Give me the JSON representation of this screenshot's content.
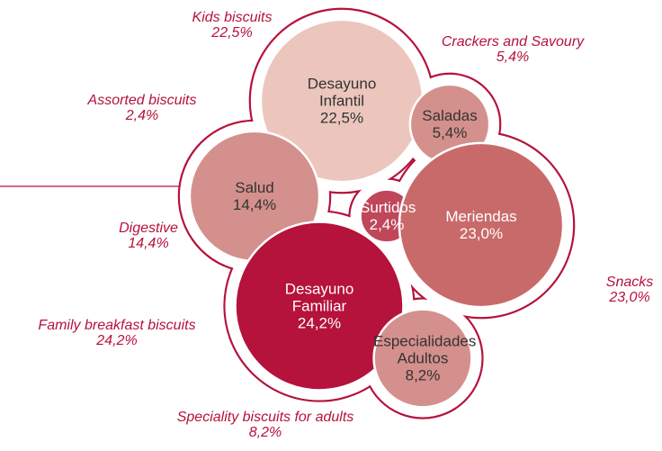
{
  "chart_data": {
    "type": "bubble",
    "categories": [
      "Desayuno Infantil",
      "Saladas",
      "Salud",
      "Surtidos",
      "Meriendas",
      "Desayuno Familiar",
      "Especialidades Adultos"
    ],
    "outer_labels": [
      "Kids biscuits",
      "Crackers and Savoury",
      "Digestive",
      "Assorted biscuits",
      "Snacks",
      "Family breakfast biscuits",
      "Speciality biscuits for adults"
    ],
    "values": [
      22.5,
      5.4,
      14.4,
      2.4,
      23.0,
      24.2,
      8.2
    ],
    "value_labels": [
      "22,5%",
      "5,4%",
      "14,4%",
      "2,4%",
      "23,0%",
      "24,2%",
      "8,2%"
    ],
    "colors": [
      "#ecc6bd",
      "#d4908c",
      "#d4908c",
      "#c0475a",
      "#c96a6a",
      "#b5123c",
      "#d4908c"
    ],
    "outline_color": "#b5123c"
  }
}
